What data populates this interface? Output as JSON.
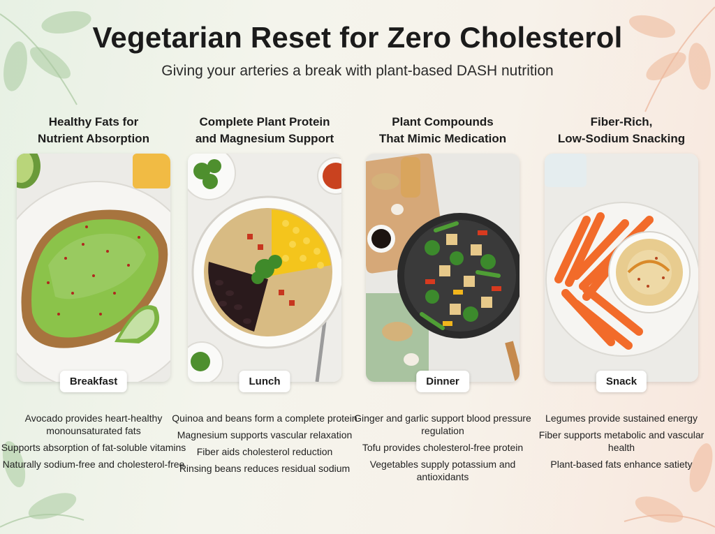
{
  "header": {
    "title": "Vegetarian Reset for Zero Cholesterol",
    "subtitle": "Giving your arteries a break with plant-based DASH nutrition"
  },
  "columns": [
    {
      "heading": "Healthy Fats for\nNutrient Absorption",
      "meal": "Breakfast",
      "bullets": [
        "Avocado provides heart-healthy monounsaturated fats",
        "Supports absorption of fat-soluble vitamins",
        "Naturally sodium-free and cholesterol-free"
      ]
    },
    {
      "heading": "Complete Plant Protein\nand Magnesium Support",
      "meal": "Lunch",
      "bullets": [
        "Quinoa and beans form a complete protein",
        "Magnesium supports vascular relaxation",
        "Fiber aids cholesterol reduction",
        "Rinsing beans reduces residual sodium"
      ]
    },
    {
      "heading": "Plant Compounds\nThat Mimic Medication",
      "meal": "Dinner",
      "bullets": [
        "Ginger and garlic support blood pressure regulation",
        "Tofu provides cholesterol-free protein",
        "Vegetables supply potassium and antioxidants"
      ]
    },
    {
      "heading": "Fiber-Rich,\nLow-Sodium Snacking",
      "meal": "Snack",
      "bullets": [
        "Legumes provide sustained energy",
        "Fiber supports metabolic and vascular health",
        "Plant-based fats enhance satiety"
      ]
    }
  ]
}
